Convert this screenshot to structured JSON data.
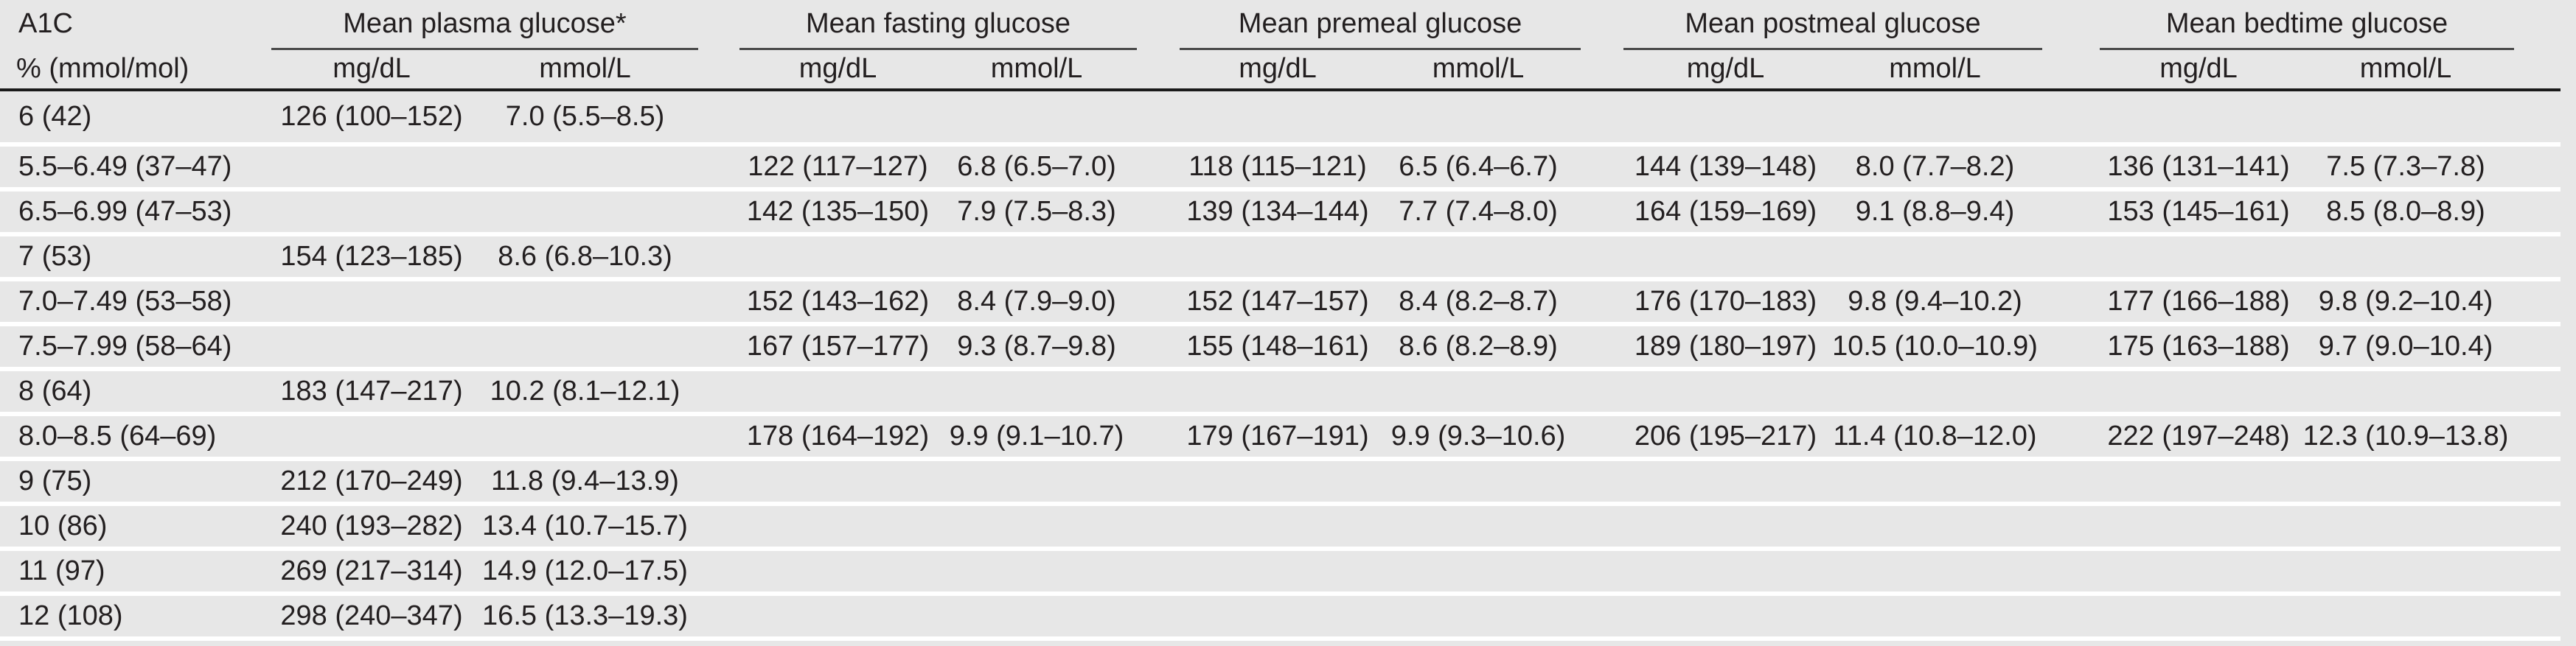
{
  "table": {
    "groups": [
      {
        "label": "A1C",
        "sub": [
          "% (mmol/mol)"
        ]
      },
      {
        "label": "Mean plasma glucose*",
        "sub": [
          "mg/dL",
          "mmol/L"
        ]
      },
      {
        "label": "Mean fasting glucose",
        "sub": [
          "mg/dL",
          "mmol/L"
        ]
      },
      {
        "label": "Mean premeal glucose",
        "sub": [
          "mg/dL",
          "mmol/L"
        ]
      },
      {
        "label": "Mean postmeal glucose",
        "sub": [
          "mg/dL",
          "mmol/L"
        ]
      },
      {
        "label": "Mean bedtime glucose",
        "sub": [
          "mg/dL",
          "mmol/L"
        ]
      }
    ],
    "rows": [
      [
        "6 (42)",
        "126 (100–152)",
        "7.0 (5.5–8.5)",
        "",
        "",
        "",
        "",
        "",
        "",
        "",
        ""
      ],
      [
        "5.5–6.49 (37–47)",
        "",
        "",
        "122 (117–127)",
        "6.8 (6.5–7.0)",
        "118 (115–121)",
        "6.5 (6.4–6.7)",
        "144 (139–148)",
        "8.0 (7.7–8.2)",
        "136 (131–141)",
        "7.5 (7.3–7.8)"
      ],
      [
        "6.5–6.99 (47–53)",
        "",
        "",
        "142 (135–150)",
        "7.9 (7.5–8.3)",
        "139 (134–144)",
        "7.7 (7.4–8.0)",
        "164 (159–169)",
        "9.1 (8.8–9.4)",
        "153 (145–161)",
        "8.5 (8.0–8.9)"
      ],
      [
        "7 (53)",
        "154 (123–185)",
        "8.6 (6.8–10.3)",
        "",
        "",
        "",
        "",
        "",
        "",
        "",
        ""
      ],
      [
        "7.0–7.49 (53–58)",
        "",
        "",
        "152 (143–162)",
        "8.4 (7.9–9.0)",
        "152 (147–157)",
        "8.4 (8.2–8.7)",
        "176 (170–183)",
        "9.8 (9.4–10.2)",
        "177 (166–188)",
        "9.8 (9.2–10.4)"
      ],
      [
        "7.5–7.99 (58–64)",
        "",
        "",
        "167 (157–177)",
        "9.3 (8.7–9.8)",
        "155 (148–161)",
        "8.6 (8.2–8.9)",
        "189 (180–197)",
        "10.5 (10.0–10.9)",
        "175 (163–188)",
        "9.7 (9.0–10.4)"
      ],
      [
        "8 (64)",
        "183 (147–217)",
        "10.2 (8.1–12.1)",
        "",
        "",
        "",
        "",
        "",
        "",
        "",
        ""
      ],
      [
        "8.0–8.5 (64–69)",
        "",
        "",
        "178 (164–192)",
        "9.9 (9.1–10.7)",
        "179 (167–191)",
        "9.9 (9.3–10.6)",
        "206 (195–217)",
        "11.4 (10.8–12.0)",
        "222 (197–248)",
        "12.3 (10.9–13.8)"
      ],
      [
        "9 (75)",
        "212 (170–249)",
        "11.8 (9.4–13.9)",
        "",
        "",
        "",
        "",
        "",
        "",
        "",
        ""
      ],
      [
        "10 (86)",
        "240 (193–282)",
        "13.4 (10.7–15.7)",
        "",
        "",
        "",
        "",
        "",
        "",
        "",
        ""
      ],
      [
        "11 (97)",
        "269 (217–314)",
        "14.9 (12.0–17.5)",
        "",
        "",
        "",
        "",
        "",
        "",
        "",
        ""
      ],
      [
        "12 (108)",
        "298 (240–347)",
        "16.5 (13.3–19.3)",
        "",
        "",
        "",
        "",
        "",
        "",
        "",
        ""
      ]
    ]
  },
  "colors": {
    "row_bg": "#e7e7e7",
    "gap_white": "#ffffff",
    "text": "#231f20",
    "thin_rule": "#4a4a4a",
    "thick_rule": "#1a1a1a"
  }
}
